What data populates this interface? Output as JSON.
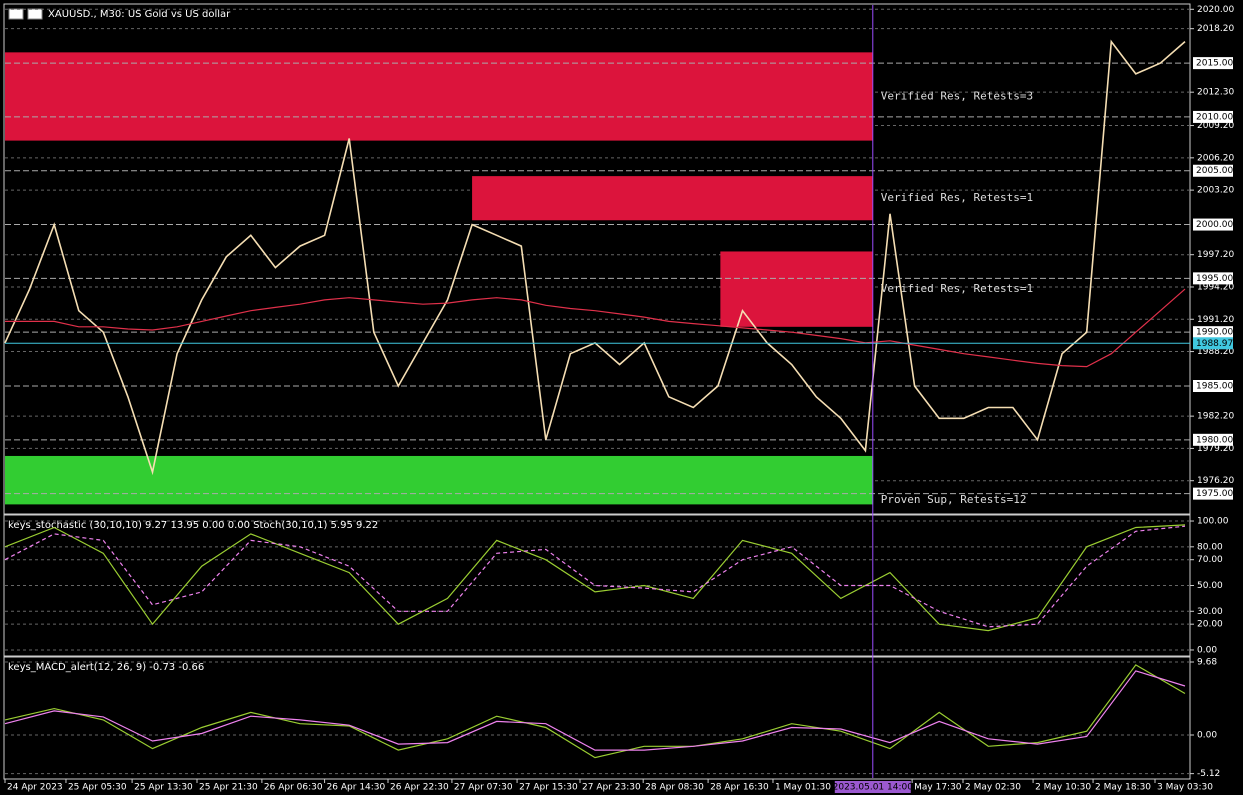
{
  "header": {
    "title": "XAUUSD., M30: US Gold vs US dollar"
  },
  "cursor": {
    "value": 35.3,
    "label": "2023.05.01 14:00"
  },
  "chart_data": [
    {
      "type": "line",
      "xlim": [
        0,
        48
      ],
      "ylim": [
        1973.2,
        2020.4
      ],
      "yticks": [
        {
          "value": 2020,
          "label": "2020.00"
        },
        {
          "value": 2018.2,
          "label": "2018.20"
        },
        {
          "value": 2012.3,
          "label": "2012.30"
        },
        {
          "value": 2009.2,
          "label": "2009.20"
        },
        {
          "value": 2006.2,
          "label": "2006.20"
        },
        {
          "value": 2003.2,
          "label": "2003.20"
        },
        {
          "value": 1997.2,
          "label": "1997.20"
        },
        {
          "value": 1994.2,
          "label": "1994.20"
        },
        {
          "value": 1991.2,
          "label": "1991.20"
        },
        {
          "value": 1988.2,
          "label": "1988.20"
        },
        {
          "value": 1982.2,
          "label": "1982.20"
        },
        {
          "value": 1979.2,
          "label": "1979.20"
        },
        {
          "value": 1976.2,
          "label": "1976.20"
        }
      ],
      "levels": [
        {
          "value": 2015,
          "label": "2015.00"
        },
        {
          "value": 2010,
          "label": "2010.00"
        },
        {
          "value": 2005,
          "label": "2005.00"
        },
        {
          "value": 2000,
          "label": "2000.00"
        },
        {
          "value": 1995,
          "label": "1995.00"
        },
        {
          "value": 1990,
          "label": "1990.00"
        },
        {
          "value": 1985,
          "label": "1985.00"
        },
        {
          "value": 1980,
          "label": "1980.00"
        },
        {
          "value": 1975,
          "label": "1975.00"
        }
      ],
      "current": 1988.97,
      "xticks": [
        {
          "value": 0,
          "label": "24 Apr 2023"
        },
        {
          "value": 2.48,
          "label": "25 Apr 05:30"
        },
        {
          "value": 5.17,
          "label": "25 Apr 13:30"
        },
        {
          "value": 7.81,
          "label": "25 Apr 21:30"
        },
        {
          "value": 10.45,
          "label": "26 Apr 06:30"
        },
        {
          "value": 13.0,
          "label": "26 Apr 14:30"
        },
        {
          "value": 15.58,
          "label": "26 Apr 22:30"
        },
        {
          "value": 18.18,
          "label": "27 Apr 07:30"
        },
        {
          "value": 20.83,
          "label": "27 Apr 15:30"
        },
        {
          "value": 23.39,
          "label": "27 Apr 23:30"
        },
        {
          "value": 25.96,
          "label": "28 Apr 08:30"
        },
        {
          "value": 28.6,
          "label": "28 Apr 16:30"
        },
        {
          "value": 31.24,
          "label": "1 May 01:30"
        },
        {
          "value": 36.9,
          "label": "May 17:30"
        },
        {
          "value": 38.97,
          "label": "2 May 02:30"
        },
        {
          "value": 41.82,
          "label": "2 May 10:30"
        },
        {
          "value": 44.26,
          "label": "2 May 18:30"
        },
        {
          "value": 46.78,
          "label": "3 May 03:30"
        }
      ],
      "zones": [
        {
          "label": "Verified Res, Retests=3",
          "color": "#dc143c",
          "ylim": [
            2007.8,
            2016.0
          ],
          "start": 0,
          "end": 35.3
        },
        {
          "label": "Verified Res, Retests=1",
          "color": "#dc143c",
          "ylim": [
            2000.4,
            2004.5
          ],
          "start": 19.0,
          "end": 35.3
        },
        {
          "label": "Verified Res, Retests=1",
          "color": "#dc143c",
          "ylim": [
            1990.5,
            1997.5
          ],
          "start": 29.1,
          "end": 35.3
        },
        {
          "label": "Proven Sup, Retests=12",
          "color": "#32cd32",
          "ylim": [
            1974.0,
            1978.5
          ],
          "start": 0,
          "end": 35.3
        }
      ],
      "series": [
        {
          "color": "#f5deb3",
          "values": [
            1989,
            1994,
            2000,
            1992,
            1990,
            1984,
            1977,
            1988,
            1993,
            1997,
            1999,
            1996,
            1998,
            1999,
            2008,
            1990,
            1985,
            1989,
            1993,
            2000,
            1999,
            1998,
            1980,
            1988,
            1989,
            1987,
            1989,
            1984,
            1983,
            1985,
            1992,
            1989,
            1987,
            1984,
            1982,
            1979,
            2001,
            1985,
            1982,
            1982,
            1983,
            1983,
            1980,
            1988,
            1990,
            2017,
            2014,
            2015,
            2017
          ]
        },
        {
          "color": "#e0304a",
          "values": [
            1991,
            1991,
            1991,
            1990.5,
            1990.5,
            1990.3,
            1990.2,
            1990.5,
            1991,
            1991.5,
            1992,
            1992.3,
            1992.6,
            1993,
            1993.2,
            1993,
            1992.8,
            1992.6,
            1992.7,
            1993,
            1993.2,
            1993,
            1992.5,
            1992.2,
            1992,
            1991.7,
            1991.4,
            1991,
            1990.8,
            1990.6,
            1990.4,
            1990.2,
            1990,
            1989.7,
            1989.4,
            1989,
            1989.2,
            1988.8,
            1988.4,
            1988,
            1987.7,
            1987.4,
            1987.1,
            1986.9,
            1986.8,
            1988,
            1990,
            1992,
            1994
          ]
        }
      ]
    },
    {
      "type": "line",
      "title": "keys_stochastic (30,10,10) 9.27 13.95 0.00 0.00 Stoch(30,10,1) 5.95 9.22",
      "ylim": [
        -3.9,
        103.9
      ],
      "yticks": [
        {
          "value": 100,
          "label": "100.00"
        },
        {
          "value": 80,
          "label": "80.00"
        },
        {
          "value": 70,
          "label": "70.00"
        },
        {
          "value": 50,
          "label": "50.00"
        },
        {
          "value": 30,
          "label": "30.00"
        },
        {
          "value": 20,
          "label": "20.00"
        },
        {
          "value": 0,
          "label": "0.00"
        }
      ],
      "series": [
        {
          "color": "#9acd32",
          "values": [
            80,
            95,
            75,
            20,
            65,
            90,
            75,
            60,
            20,
            40,
            85,
            70,
            45,
            50,
            40,
            85,
            75,
            40,
            60,
            20,
            15,
            25,
            80,
            95,
            97
          ]
        },
        {
          "color": "#ee82ee",
          "dash": true,
          "values": [
            70,
            90,
            85,
            35,
            45,
            85,
            80,
            65,
            30,
            30,
            75,
            78,
            50,
            48,
            45,
            70,
            80,
            50,
            50,
            30,
            18,
            20,
            65,
            92,
            96
          ]
        }
      ]
    },
    {
      "type": "line",
      "title": "keys_MACD_alert(12, 26, 9) -0.73 -0.66",
      "ylim": [
        -5.7,
        10.21
      ],
      "yticks": [
        {
          "value": 9.68,
          "label": "9.68"
        },
        {
          "value": 0,
          "label": "0.00"
        },
        {
          "value": -5.12,
          "label": "-5.12"
        }
      ],
      "series": [
        {
          "color": "#9acd32",
          "values": [
            2.0,
            3.5,
            2.0,
            -1.8,
            1.0,
            3.0,
            1.5,
            1.2,
            -2.0,
            -0.5,
            2.5,
            1.0,
            -3.0,
            -1.5,
            -1.5,
            -0.5,
            1.5,
            0.5,
            -1.8,
            3.0,
            -1.5,
            -1.0,
            0.5,
            9.3,
            5.5
          ]
        },
        {
          "color": "#ee82ee",
          "values": [
            1.5,
            3.2,
            2.4,
            -0.8,
            0.2,
            2.5,
            2.0,
            1.3,
            -1.2,
            -1.0,
            1.8,
            1.5,
            -2.0,
            -2.0,
            -1.5,
            -0.8,
            1.0,
            0.8,
            -1.0,
            1.8,
            -0.5,
            -1.2,
            -0.2,
            8.5,
            6.5
          ]
        }
      ]
    }
  ]
}
